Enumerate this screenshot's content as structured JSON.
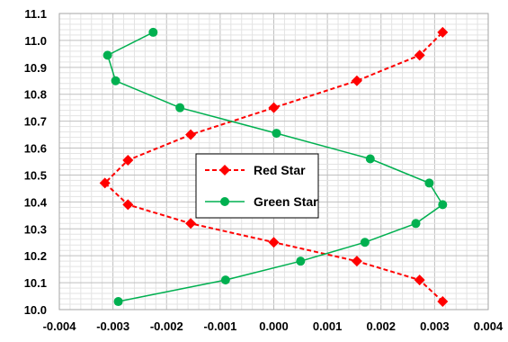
{
  "chart_data": {
    "type": "scatter",
    "title": "",
    "xlabel": "",
    "ylabel": "",
    "xlim": [
      -0.004,
      0.004
    ],
    "ylim": [
      10.0,
      11.1
    ],
    "x_ticks": [
      "-0.004",
      "-0.003",
      "-0.002",
      "-0.001",
      "0.000",
      "0.001",
      "0.002",
      "0.003",
      "0.004"
    ],
    "y_ticks": [
      "10.0",
      "10.1",
      "10.2",
      "10.3",
      "10.4",
      "10.5",
      "10.6",
      "10.7",
      "10.8",
      "10.9",
      "11.0",
      "11.1"
    ],
    "grid": true,
    "legend_position": "center",
    "series": [
      {
        "name": "Red Star",
        "color": "#ff0000",
        "line_style": "dashed",
        "marker": "diamond",
        "points": [
          [
            0.00315,
            10.03
          ],
          [
            0.00272,
            10.11
          ],
          [
            0.00155,
            10.18
          ],
          [
            0.0,
            10.25
          ],
          [
            -0.00155,
            10.32
          ],
          [
            -0.00272,
            10.39
          ],
          [
            -0.00315,
            10.47
          ],
          [
            -0.00272,
            10.555
          ],
          [
            -0.00155,
            10.65
          ],
          [
            0.0,
            10.75
          ],
          [
            0.00155,
            10.85
          ],
          [
            0.00272,
            10.945
          ],
          [
            0.00315,
            11.03
          ]
        ]
      },
      {
        "name": "Green Star",
        "color": "#00b050",
        "line_style": "solid",
        "marker": "circle",
        "points": [
          [
            -0.0029,
            10.03
          ],
          [
            -0.0009,
            10.11
          ],
          [
            0.0005,
            10.18
          ],
          [
            0.0017,
            10.25
          ],
          [
            0.00265,
            10.32
          ],
          [
            0.00315,
            10.39
          ],
          [
            0.0029,
            10.47
          ],
          [
            0.0018,
            10.56
          ],
          [
            5e-05,
            10.655
          ],
          [
            -0.00175,
            10.75
          ],
          [
            -0.00295,
            10.85
          ],
          [
            -0.0031,
            10.945
          ],
          [
            -0.00225,
            11.03
          ]
        ]
      }
    ]
  }
}
